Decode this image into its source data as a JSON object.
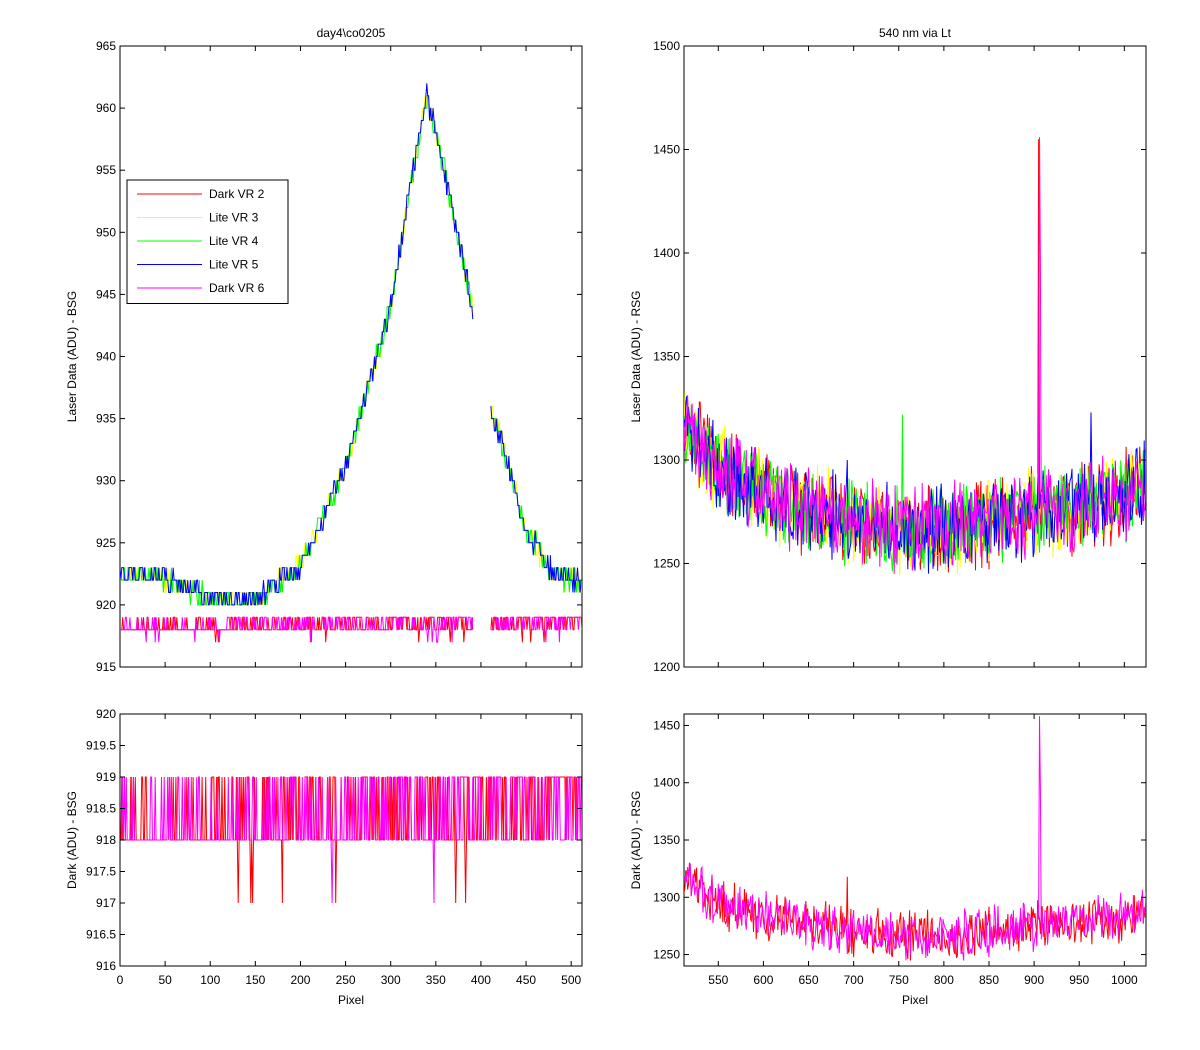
{
  "chart_data": [
    {
      "id": "tl",
      "type": "line",
      "title": "day4\\co0205",
      "xlabel": "",
      "ylabel": "Laser Data (ADU) - BSG",
      "xlim": [
        0,
        512
      ],
      "ylim": [
        915,
        965
      ],
      "xticks": [
        0,
        50,
        100,
        150,
        200,
        250,
        300,
        350,
        400,
        450,
        500
      ],
      "xtick_labels": [
        "",
        "",
        "",
        "",
        "",
        "",
        "",
        "",
        "",
        "",
        ""
      ],
      "yticks": [
        915,
        920,
        925,
        930,
        935,
        940,
        945,
        950,
        955,
        960,
        965
      ],
      "ytick_labels": [
        "915",
        "920",
        "925",
        "930",
        "935",
        "940",
        "945",
        "950",
        "955",
        "960",
        "965"
      ],
      "legend": "upper-left",
      "series": [
        {
          "name": "Dark VR 2",
          "color": "#ff0000",
          "profile": [
            [
              0,
              918.4
            ],
            [
              512,
              918.4
            ]
          ]
        },
        {
          "name": "Lite VR 3",
          "color": "#ffff00",
          "profile": [
            [
              0,
              922.6
            ],
            [
              40,
              922.5
            ],
            [
              100,
              920.5
            ],
            [
              150,
              920.5
            ],
            [
              200,
              923.2
            ],
            [
              250,
              931
            ],
            [
              300,
              944
            ],
            [
              320,
              953
            ],
            [
              340,
              961
            ],
            [
              360,
              955
            ],
            [
              390,
              944
            ],
            [
              405,
              936.5
            ],
            [
              420,
              934
            ],
            [
              450,
              926
            ],
            [
              480,
              922.5
            ],
            [
              512,
              921.8
            ]
          ]
        },
        {
          "name": "Lite VR 4",
          "color": "#00ff00",
          "profile": [
            [
              0,
              922.6
            ],
            [
              40,
              922.5
            ],
            [
              100,
              920.5
            ],
            [
              150,
              920.5
            ],
            [
              200,
              923.2
            ],
            [
              250,
              931
            ],
            [
              300,
              944
            ],
            [
              320,
              953
            ],
            [
              340,
              961
            ],
            [
              360,
              955
            ],
            [
              390,
              944
            ],
            [
              405,
              936.5
            ],
            [
              420,
              934
            ],
            [
              450,
              926
            ],
            [
              480,
              922.5
            ],
            [
              512,
              921.8
            ]
          ]
        },
        {
          "name": "Lite VR 5",
          "color": "#0000ff",
          "profile": [
            [
              0,
              922.6
            ],
            [
              40,
              922.5
            ],
            [
              100,
              920.5
            ],
            [
              150,
              920.5
            ],
            [
              200,
              923.2
            ],
            [
              250,
              931
            ],
            [
              300,
              944
            ],
            [
              320,
              953
            ],
            [
              340,
              961
            ],
            [
              360,
              955
            ],
            [
              390,
              944
            ],
            [
              405,
              936.5
            ],
            [
              420,
              934
            ],
            [
              450,
              926
            ],
            [
              480,
              922.5
            ],
            [
              512,
              921.8
            ]
          ]
        },
        {
          "name": "Dark VR 6",
          "color": "#ff00ff",
          "profile": [
            [
              0,
              918.4
            ],
            [
              512,
              918.4
            ]
          ]
        }
      ],
      "gaps": [
        [
          392,
          410
        ]
      ]
    },
    {
      "id": "bl",
      "type": "line",
      "title": "",
      "xlabel": "Pixel",
      "ylabel": "Dark (ADU) - BSG",
      "xlim": [
        0,
        512
      ],
      "ylim": [
        916,
        920
      ],
      "xticks": [
        0,
        50,
        100,
        150,
        200,
        250,
        300,
        350,
        400,
        450,
        500
      ],
      "xtick_labels": [
        "0",
        "50",
        "100",
        "150",
        "200",
        "250",
        "300",
        "350",
        "400",
        "450",
        "500"
      ],
      "yticks": [
        916,
        916.5,
        917,
        917.5,
        918,
        918.5,
        919,
        919.5,
        920
      ],
      "ytick_labels": [
        "916",
        "916.5",
        "917",
        "917.5",
        "918",
        "918.5",
        "919",
        "919.5",
        "920"
      ],
      "series": [
        {
          "name": "Dark VR 2",
          "color": "#ff0000",
          "profile": [
            [
              0,
              918.5
            ],
            [
              512,
              918.5
            ]
          ]
        },
        {
          "name": "Dark VR 6",
          "color": "#ff00ff",
          "profile": [
            [
              0,
              918.5
            ],
            [
              512,
              918.5
            ]
          ]
        }
      ]
    },
    {
      "id": "tr",
      "type": "line",
      "title": "540 nm via Lt",
      "xlabel": "",
      "ylabel": "Laser Data (ADU) - RSG",
      "xlim": [
        512,
        1024
      ],
      "ylim": [
        1200,
        1500
      ],
      "xticks": [
        550,
        600,
        650,
        700,
        750,
        800,
        850,
        900,
        950,
        1000
      ],
      "xtick_labels": [
        "",
        "",
        "",
        "",
        "",
        "",
        "",
        "",
        "",
        ""
      ],
      "yticks": [
        1200,
        1250,
        1300,
        1350,
        1400,
        1450,
        1500
      ],
      "ytick_labels": [
        "1200",
        "1250",
        "1300",
        "1350",
        "1400",
        "1450",
        "1500"
      ],
      "series": [
        {
          "name": "Dark VR 2",
          "color": "#ff0000",
          "profile": [
            [
              512,
              1318
            ],
            [
              550,
              1295
            ],
            [
              600,
              1284
            ],
            [
              650,
              1276
            ],
            [
              700,
              1270
            ],
            [
              750,
              1267
            ],
            [
              800,
              1266
            ],
            [
              850,
              1270
            ],
            [
              900,
              1275
            ],
            [
              950,
              1277
            ],
            [
              1000,
              1283
            ],
            [
              1024,
              1287
            ]
          ],
          "spikes": [
            [
              905,
              1455
            ]
          ]
        },
        {
          "name": "Lite VR 3",
          "color": "#ffff00",
          "profile": [
            [
              512,
              1318
            ],
            [
              550,
              1295
            ],
            [
              600,
              1284
            ],
            [
              650,
              1276
            ],
            [
              700,
              1270
            ],
            [
              750,
              1267
            ],
            [
              800,
              1266
            ],
            [
              850,
              1270
            ],
            [
              900,
              1275
            ],
            [
              950,
              1277
            ],
            [
              1000,
              1283
            ],
            [
              1024,
              1287
            ]
          ],
          "spikes": []
        },
        {
          "name": "Lite VR 4",
          "color": "#00ff00",
          "profile": [
            [
              512,
              1318
            ],
            [
              550,
              1295
            ],
            [
              600,
              1284
            ],
            [
              650,
              1276
            ],
            [
              700,
              1270
            ],
            [
              750,
              1267
            ],
            [
              800,
              1266
            ],
            [
              850,
              1270
            ],
            [
              900,
              1275
            ],
            [
              950,
              1277
            ],
            [
              1000,
              1283
            ],
            [
              1024,
              1287
            ]
          ],
          "spikes": [
            [
              754,
              1322
            ]
          ]
        },
        {
          "name": "Lite VR 5",
          "color": "#0000ff",
          "profile": [
            [
              512,
              1318
            ],
            [
              550,
              1295
            ],
            [
              600,
              1284
            ],
            [
              650,
              1276
            ],
            [
              700,
              1270
            ],
            [
              750,
              1267
            ],
            [
              800,
              1266
            ],
            [
              850,
              1270
            ],
            [
              900,
              1275
            ],
            [
              950,
              1277
            ],
            [
              1000,
              1283
            ],
            [
              1024,
              1287
            ]
          ],
          "spikes": [
            [
              963,
              1323
            ],
            [
              693,
              1300
            ]
          ]
        },
        {
          "name": "Dark VR 6",
          "color": "#ff00ff",
          "profile": [
            [
              512,
              1318
            ],
            [
              550,
              1295
            ],
            [
              600,
              1284
            ],
            [
              650,
              1276
            ],
            [
              700,
              1270
            ],
            [
              750,
              1267
            ],
            [
              800,
              1266
            ],
            [
              850,
              1270
            ],
            [
              900,
              1275
            ],
            [
              950,
              1277
            ],
            [
              1000,
              1283
            ],
            [
              1024,
              1287
            ]
          ],
          "spikes": [
            [
              906,
              1456
            ],
            [
              907,
              1395
            ]
          ]
        }
      ]
    },
    {
      "id": "br",
      "type": "line",
      "title": "",
      "xlabel": "Pixel",
      "ylabel": "Dark (ADU) - RSG",
      "xlim": [
        512,
        1024
      ],
      "ylim": [
        1240,
        1460
      ],
      "xticks": [
        550,
        600,
        650,
        700,
        750,
        800,
        850,
        900,
        950,
        1000
      ],
      "xtick_labels": [
        "550",
        "600",
        "650",
        "700",
        "750",
        "800",
        "850",
        "900",
        "950",
        "1000"
      ],
      "yticks": [
        1250,
        1300,
        1350,
        1400,
        1450
      ],
      "ytick_labels": [
        "1250",
        "1300",
        "1350",
        "1400",
        "1450"
      ],
      "series": [
        {
          "name": "Dark VR 2",
          "color": "#ff0000",
          "profile": [
            [
              512,
              1318
            ],
            [
              550,
              1295
            ],
            [
              600,
              1284
            ],
            [
              650,
              1276
            ],
            [
              700,
              1270
            ],
            [
              750,
              1267
            ],
            [
              800,
              1266
            ],
            [
              850,
              1270
            ],
            [
              900,
              1275
            ],
            [
              950,
              1277
            ],
            [
              1000,
              1283
            ],
            [
              1024,
              1287
            ]
          ],
          "spikes": [
            [
              693,
              1318
            ]
          ]
        },
        {
          "name": "Dark VR 6",
          "color": "#ff00ff",
          "profile": [
            [
              512,
              1318
            ],
            [
              550,
              1295
            ],
            [
              600,
              1284
            ],
            [
              650,
              1276
            ],
            [
              700,
              1270
            ],
            [
              750,
              1267
            ],
            [
              800,
              1266
            ],
            [
              850,
              1270
            ],
            [
              900,
              1275
            ],
            [
              950,
              1277
            ],
            [
              1000,
              1283
            ],
            [
              1024,
              1287
            ]
          ],
          "spikes": [
            [
              906,
              1458
            ],
            [
              907,
              1395
            ]
          ]
        }
      ]
    }
  ]
}
